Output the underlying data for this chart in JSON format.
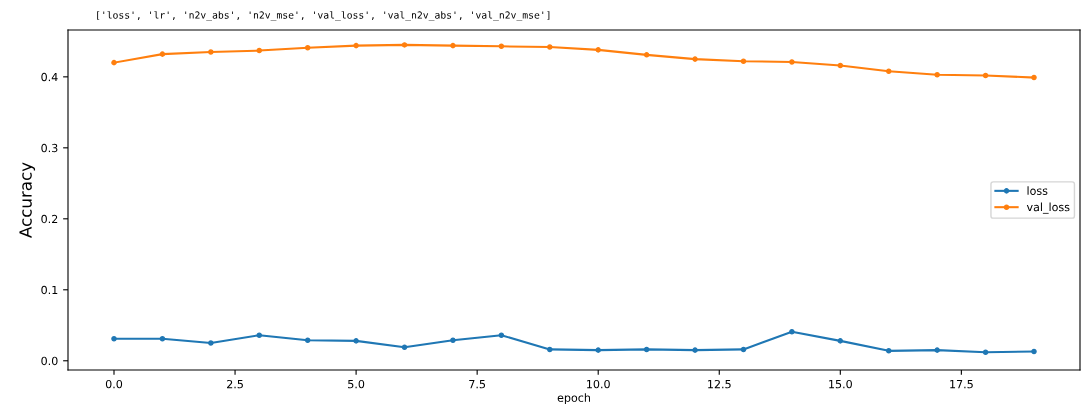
{
  "chart_data": {
    "type": "line",
    "title": "['loss', 'lr', 'n2v_abs', 'n2v_mse', 'val_loss', 'val_n2v_abs', 'val_n2v_mse']",
    "xlabel": "epoch",
    "ylabel": "Accuracy",
    "x": [
      0,
      1,
      2,
      3,
      4,
      5,
      6,
      7,
      8,
      9,
      10,
      11,
      12,
      13,
      14,
      15,
      16,
      17,
      18,
      19
    ],
    "series": [
      {
        "name": "loss",
        "color": "#1f77b4",
        "values": [
          0.031,
          0.031,
          0.025,
          0.036,
          0.029,
          0.028,
          0.019,
          0.029,
          0.036,
          0.016,
          0.015,
          0.016,
          0.015,
          0.016,
          0.041,
          0.028,
          0.014,
          0.015,
          0.012,
          0.013
        ]
      },
      {
        "name": "val_loss",
        "color": "#ff7f0e",
        "values": [
          0.42,
          0.432,
          0.435,
          0.437,
          0.441,
          0.444,
          0.445,
          0.444,
          0.443,
          0.442,
          0.438,
          0.431,
          0.425,
          0.422,
          0.421,
          0.416,
          0.408,
          0.403,
          0.402,
          0.399
        ]
      }
    ],
    "xlim": [
      -0.95,
      19.95
    ],
    "ylim": [
      -0.013,
      0.466
    ],
    "xticks": [
      {
        "value": 0,
        "label": "0.0"
      },
      {
        "value": 2.5,
        "label": "2.5"
      },
      {
        "value": 5,
        "label": "5.0"
      },
      {
        "value": 7.5,
        "label": "7.5"
      },
      {
        "value": 10,
        "label": "10.0"
      },
      {
        "value": 12.5,
        "label": "12.5"
      },
      {
        "value": 15,
        "label": "15.0"
      },
      {
        "value": 17.5,
        "label": "17.5"
      }
    ],
    "yticks": [
      {
        "value": 0,
        "label": "0.0"
      },
      0.1,
      0.2,
      0.3,
      0.4
    ],
    "grid": false,
    "legend": "center right",
    "marker": "circle",
    "line_style": "solid"
  }
}
